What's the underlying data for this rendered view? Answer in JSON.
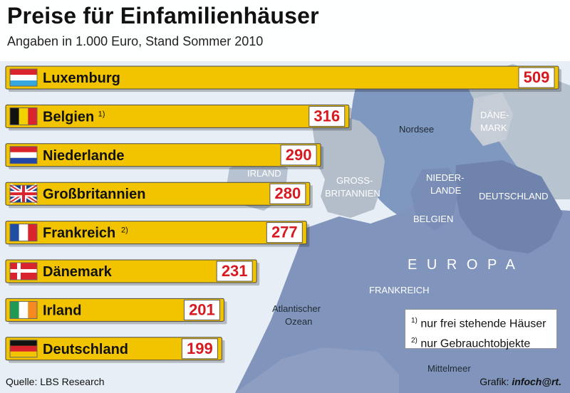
{
  "header": {
    "title": "Preise für Einfamilienhäuser",
    "subtitle": "Angaben in 1.000 Euro, Stand Sommer 2010"
  },
  "map_labels": {
    "nordsee": "Nordsee",
    "daenemark_1": "DÄNE-",
    "daenemark_2": "MARK",
    "irland": "IRLAND",
    "gross_1": "GROSS-",
    "gross_2": "BRITANNIEN",
    "nieder_1": "NIEDER-",
    "nieder_2": "LANDE",
    "deutschland": "DEUTSCHLAND",
    "belgien": "BELGIEN",
    "europa": "E U R O P A",
    "frankreich": "FRANKREICH",
    "atlantik_1": "Atlantischer",
    "atlantik_2": "Ozean",
    "mittelmeer": "Mittelmeer"
  },
  "chart_data": {
    "type": "bar",
    "categories": [
      "Luxemburg",
      "Belgien",
      "Niederlande",
      "Großbritannien",
      "Frankreich",
      "Dänemark",
      "Irland",
      "Deutschland"
    ],
    "values": [
      509,
      316,
      290,
      280,
      277,
      231,
      201,
      199
    ],
    "footnote_marks": [
      "",
      "1)",
      "",
      "",
      "2)",
      "",
      "",
      ""
    ],
    "flags": [
      "flag-luxembourg",
      "flag-belgium",
      "flag-netherlands",
      "flag-united-kingdom",
      "flag-france",
      "flag-denmark",
      "flag-ireland",
      "flag-germany"
    ],
    "title": "Preise für Einfamilienhäuser",
    "subtitle": "Angaben in 1.000 Euro, Stand Sommer 2010",
    "colors": {
      "bar": "#f2c400",
      "bar_border": "#4a4a4a",
      "value_text": "#d71920",
      "value_box": "#ffffff"
    }
  },
  "notes": [
    {
      "mark": "1)",
      "text": "nur frei stehende Häuser"
    },
    {
      "mark": "2)",
      "text": "nur Gebrauchtobjekte"
    }
  ],
  "footer": {
    "source": "Quelle: LBS Research",
    "credit_label": "Grafik:",
    "credit_brand": "infoch@rt."
  }
}
